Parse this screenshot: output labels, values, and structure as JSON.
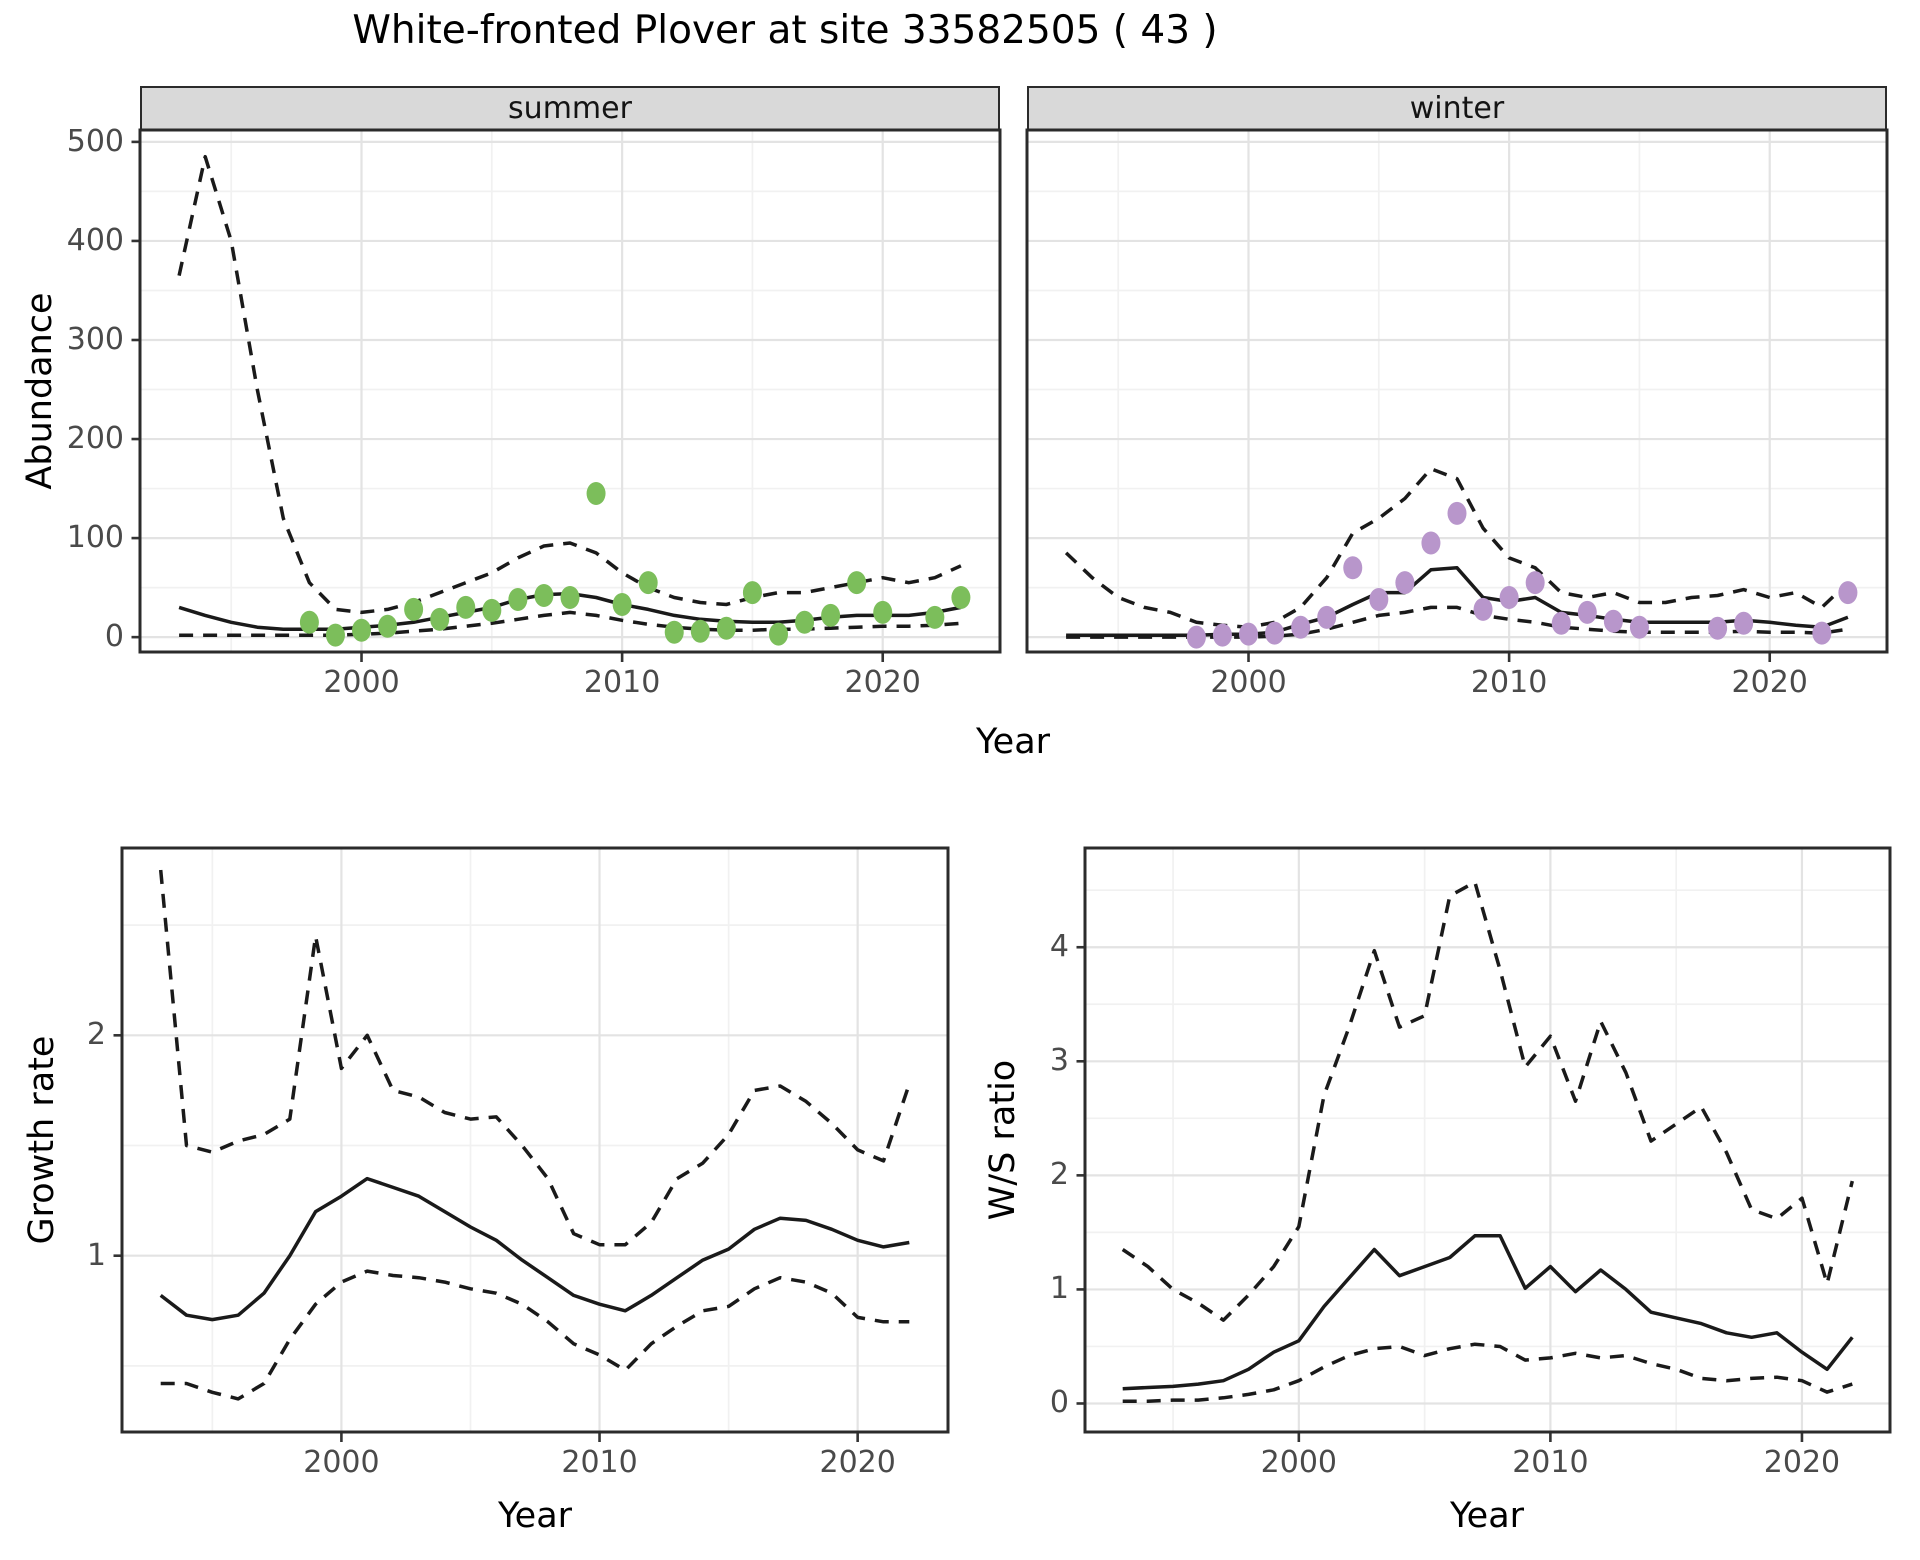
{
  "labels": {
    "title": "White-fronted Plover at site 33582505 ( 43 )",
    "facet_summer": "summer",
    "facet_winter": "winter",
    "abundance": "Abundance",
    "growth_rate": "Growth rate",
    "ws_ratio": "W/S ratio",
    "year": "Year"
  },
  "colors": {
    "summer_point": "#7CBE5B",
    "winter_point": "#B896CB",
    "line": "#1a1a1a",
    "strip_bg": "#d9d9d9",
    "panel_border": "#2b2b2b",
    "grid_major": "#e3e3e3",
    "grid_minor": "#f1f1f1",
    "axis_text": "#4a4a4a",
    "tick_mark": "#333333"
  },
  "chart_data": [
    {
      "id": "abundance_summer",
      "type": "line",
      "facet_label": "summer",
      "xlabel": "Year",
      "ylabel": "Abundance",
      "xlim": [
        1991.5,
        2024.5
      ],
      "ylim": [
        -15,
        512
      ],
      "xticks": [
        2000,
        2010,
        2020
      ],
      "xminor": [
        1995,
        2005,
        2015
      ],
      "yticks": [
        0,
        100,
        200,
        300,
        400,
        500
      ],
      "yminor": [
        50,
        150,
        250,
        350,
        450
      ],
      "grid": true,
      "legend": "none",
      "series": [
        {
          "name": "upper_ci",
          "style": "dashed",
          "x": [
            1993,
            1994,
            1995,
            1996,
            1997,
            1998,
            1999,
            2000,
            2001,
            2002,
            2003,
            2004,
            2005,
            2006,
            2007,
            2008,
            2009,
            2010,
            2011,
            2012,
            2013,
            2014,
            2015,
            2016,
            2017,
            2018,
            2019,
            2020,
            2021,
            2022,
            2023
          ],
          "y": [
            365,
            485,
            400,
            250,
            120,
            55,
            28,
            25,
            28,
            35,
            45,
            55,
            65,
            80,
            92,
            95,
            85,
            65,
            50,
            40,
            35,
            33,
            40,
            45,
            45,
            50,
            55,
            60,
            55,
            60,
            72
          ]
        },
        {
          "name": "median_fit",
          "style": "solid",
          "x": [
            1993,
            1994,
            1995,
            1996,
            1997,
            1998,
            1999,
            2000,
            2001,
            2002,
            2003,
            2004,
            2005,
            2006,
            2007,
            2008,
            2009,
            2010,
            2011,
            2012,
            2013,
            2014,
            2015,
            2016,
            2017,
            2018,
            2019,
            2020,
            2021,
            2022,
            2023
          ],
          "y": [
            30,
            22,
            15,
            10,
            8,
            8,
            8,
            10,
            12,
            15,
            20,
            25,
            30,
            38,
            43,
            44,
            40,
            33,
            28,
            22,
            18,
            16,
            15,
            15,
            17,
            20,
            22,
            22,
            22,
            25,
            30
          ]
        },
        {
          "name": "lower_ci",
          "style": "dashed",
          "x": [
            1993,
            1994,
            1995,
            1996,
            1997,
            1998,
            1999,
            2000,
            2001,
            2002,
            2003,
            2004,
            2005,
            2006,
            2007,
            2008,
            2009,
            2010,
            2011,
            2012,
            2013,
            2014,
            2015,
            2016,
            2017,
            2018,
            2019,
            2020,
            2021,
            2022,
            2023
          ],
          "y": [
            2,
            2,
            2,
            2,
            2,
            2,
            2,
            3,
            4,
            6,
            8,
            11,
            14,
            18,
            22,
            25,
            22,
            17,
            13,
            10,
            8,
            7,
            7,
            8,
            8,
            9,
            10,
            11,
            11,
            12,
            14
          ]
        },
        {
          "name": "observed_counts",
          "style": "points",
          "color": "#7CBE5B",
          "x": [
            1998,
            1999,
            2000,
            2001,
            2002,
            2003,
            2004,
            2005,
            2006,
            2007,
            2008,
            2009,
            2010,
            2011,
            2012,
            2013,
            2014,
            2015,
            2016,
            2017,
            2018,
            2019,
            2020,
            2022,
            2023
          ],
          "y": [
            15,
            2,
            7,
            11,
            28,
            18,
            30,
            27,
            38,
            42,
            40,
            145,
            33,
            55,
            5,
            6,
            9,
            45,
            3,
            15,
            22,
            55,
            25,
            20,
            40
          ]
        }
      ]
    },
    {
      "id": "abundance_winter",
      "type": "line",
      "facet_label": "winter",
      "xlabel": "Year",
      "ylabel": "Abundance",
      "xlim": [
        1991.5,
        2024.5
      ],
      "ylim": [
        -15,
        512
      ],
      "xticks": [
        2000,
        2010,
        2020
      ],
      "xminor": [
        1995,
        2005,
        2015
      ],
      "yticks": [
        0,
        100,
        200,
        300,
        400,
        500
      ],
      "yminor": [
        50,
        150,
        250,
        350,
        450
      ],
      "grid": true,
      "legend": "none",
      "series": [
        {
          "name": "upper_ci",
          "style": "dashed",
          "x": [
            1993,
            1994,
            1995,
            1996,
            1997,
            1998,
            1999,
            2000,
            2001,
            2002,
            2003,
            2004,
            2005,
            2006,
            2007,
            2008,
            2009,
            2010,
            2011,
            2012,
            2013,
            2014,
            2015,
            2016,
            2017,
            2018,
            2019,
            2020,
            2021,
            2022,
            2023
          ],
          "y": [
            85,
            60,
            40,
            30,
            25,
            15,
            12,
            10,
            15,
            30,
            60,
            105,
            120,
            140,
            170,
            160,
            110,
            80,
            70,
            45,
            40,
            45,
            35,
            35,
            40,
            42,
            48,
            40,
            45,
            30,
            55
          ]
        },
        {
          "name": "median_fit",
          "style": "solid",
          "x": [
            1993,
            1994,
            1995,
            1996,
            1997,
            1998,
            1999,
            2000,
            2001,
            2002,
            2003,
            2004,
            2005,
            2006,
            2007,
            2008,
            2009,
            2010,
            2011,
            2012,
            2013,
            2014,
            2015,
            2016,
            2017,
            2018,
            2019,
            2020,
            2021,
            2022,
            2023
          ],
          "y": [
            2,
            2,
            2,
            2,
            2,
            2,
            3,
            3,
            5,
            13,
            20,
            33,
            45,
            45,
            68,
            70,
            40,
            36,
            40,
            25,
            22,
            18,
            15,
            15,
            15,
            15,
            17,
            15,
            12,
            10,
            20
          ]
        },
        {
          "name": "lower_ci",
          "style": "dashed",
          "x": [
            1993,
            1994,
            1995,
            1996,
            1997,
            1998,
            1999,
            2000,
            2001,
            2002,
            2003,
            2004,
            2005,
            2006,
            2007,
            2008,
            2009,
            2010,
            2011,
            2012,
            2013,
            2014,
            2015,
            2016,
            2017,
            2018,
            2019,
            2020,
            2021,
            2022,
            2023
          ],
          "y": [
            0,
            0,
            0,
            0,
            0,
            0,
            0,
            0,
            1,
            3,
            8,
            15,
            22,
            25,
            30,
            30,
            22,
            18,
            15,
            10,
            8,
            6,
            5,
            5,
            5,
            5,
            6,
            5,
            5,
            4,
            8
          ]
        },
        {
          "name": "observed_counts",
          "style": "points",
          "color": "#B896CB",
          "x": [
            1998,
            1999,
            2000,
            2001,
            2002,
            2003,
            2004,
            2005,
            2006,
            2007,
            2008,
            2009,
            2010,
            2011,
            2012,
            2013,
            2014,
            2015,
            2018,
            2019,
            2022,
            2023
          ],
          "y": [
            0,
            2,
            3,
            4,
            10,
            20,
            70,
            38,
            55,
            95,
            125,
            28,
            40,
            55,
            14,
            25,
            16,
            10,
            9,
            14,
            4,
            45
          ]
        }
      ]
    },
    {
      "id": "growth_rate",
      "type": "line",
      "facet_label": "",
      "xlabel": "Year",
      "ylabel": "Growth rate",
      "xlim": [
        1991.5,
        2023.5
      ],
      "ylim": [
        0.2,
        2.85
      ],
      "xticks": [
        2000,
        2010,
        2020
      ],
      "xminor": [
        1995,
        2005,
        2015
      ],
      "yticks": [
        1,
        2
      ],
      "yminor": [
        0.5,
        1.5,
        2.5
      ],
      "grid": true,
      "legend": "none",
      "series": [
        {
          "name": "upper_ci",
          "style": "dashed",
          "x": [
            1993,
            1994,
            1995,
            1996,
            1997,
            1998,
            1999,
            2000,
            2001,
            2002,
            2003,
            2004,
            2005,
            2006,
            2007,
            2008,
            2009,
            2010,
            2011,
            2012,
            2013,
            2014,
            2015,
            2016,
            2017,
            2018,
            2019,
            2020,
            2021,
            2022
          ],
          "y": [
            2.75,
            1.5,
            1.47,
            1.52,
            1.55,
            1.62,
            2.45,
            1.85,
            2.0,
            1.75,
            1.72,
            1.65,
            1.62,
            1.63,
            1.5,
            1.35,
            1.1,
            1.05,
            1.05,
            1.15,
            1.35,
            1.42,
            1.55,
            1.75,
            1.77,
            1.7,
            1.6,
            1.48,
            1.43,
            1.78
          ]
        },
        {
          "name": "median_fit",
          "style": "solid",
          "x": [
            1993,
            1994,
            1995,
            1996,
            1997,
            1998,
            1999,
            2000,
            2001,
            2002,
            2003,
            2004,
            2005,
            2006,
            2007,
            2008,
            2009,
            2010,
            2011,
            2012,
            2013,
            2014,
            2015,
            2016,
            2017,
            2018,
            2019,
            2020,
            2021,
            2022
          ],
          "y": [
            0.82,
            0.73,
            0.71,
            0.73,
            0.83,
            1.0,
            1.2,
            1.27,
            1.35,
            1.31,
            1.27,
            1.2,
            1.13,
            1.07,
            0.98,
            0.9,
            0.82,
            0.78,
            0.75,
            0.82,
            0.9,
            0.98,
            1.03,
            1.12,
            1.17,
            1.16,
            1.12,
            1.07,
            1.04,
            1.06
          ]
        },
        {
          "name": "lower_ci",
          "style": "dashed",
          "x": [
            1993,
            1994,
            1995,
            1996,
            1997,
            1998,
            1999,
            2000,
            2001,
            2002,
            2003,
            2004,
            2005,
            2006,
            2007,
            2008,
            2009,
            2010,
            2011,
            2012,
            2013,
            2014,
            2015,
            2016,
            2017,
            2018,
            2019,
            2020,
            2021,
            2022
          ],
          "y": [
            0.42,
            0.42,
            0.38,
            0.35,
            0.42,
            0.62,
            0.78,
            0.88,
            0.93,
            0.91,
            0.9,
            0.88,
            0.85,
            0.83,
            0.78,
            0.7,
            0.6,
            0.55,
            0.48,
            0.6,
            0.68,
            0.75,
            0.77,
            0.85,
            0.9,
            0.88,
            0.83,
            0.72,
            0.7,
            0.7
          ]
        }
      ]
    },
    {
      "id": "ws_ratio",
      "type": "line",
      "facet_label": "",
      "xlabel": "Year",
      "ylabel": "W/S ratio",
      "xlim": [
        1991.5,
        2023.5
      ],
      "ylim": [
        -0.25,
        4.87
      ],
      "xticks": [
        2000,
        2010,
        2020
      ],
      "xminor": [
        1995,
        2005,
        2015
      ],
      "yticks": [
        0,
        1,
        2,
        3,
        4
      ],
      "yminor": [
        0.5,
        1.5,
        2.5,
        3.5,
        4.5
      ],
      "grid": true,
      "legend": "none",
      "series": [
        {
          "name": "upper_ci",
          "style": "dashed",
          "x": [
            1993,
            1994,
            1995,
            1996,
            1997,
            1998,
            1999,
            2000,
            2001,
            2002,
            2003,
            2004,
            2005,
            2006,
            2007,
            2008,
            2009,
            2010,
            2011,
            2012,
            2013,
            2014,
            2015,
            2016,
            2017,
            2018,
            2019,
            2020,
            2021,
            2022
          ],
          "y": [
            1.35,
            1.2,
            1.0,
            0.88,
            0.73,
            0.95,
            1.2,
            1.55,
            2.7,
            3.3,
            3.97,
            3.3,
            3.4,
            4.45,
            4.57,
            3.8,
            2.95,
            3.22,
            2.65,
            3.35,
            2.9,
            2.3,
            2.45,
            2.6,
            2.2,
            1.7,
            1.62,
            1.8,
            1.05,
            1.95
          ]
        },
        {
          "name": "median_fit",
          "style": "solid",
          "x": [
            1993,
            1994,
            1995,
            1996,
            1997,
            1998,
            1999,
            2000,
            2001,
            2002,
            2003,
            2004,
            2005,
            2006,
            2007,
            2008,
            2009,
            2010,
            2011,
            2012,
            2013,
            2014,
            2015,
            2016,
            2017,
            2018,
            2019,
            2020,
            2021,
            2022
          ],
          "y": [
            0.13,
            0.14,
            0.15,
            0.17,
            0.2,
            0.3,
            0.45,
            0.55,
            0.85,
            1.1,
            1.35,
            1.12,
            1.2,
            1.28,
            1.47,
            1.47,
            1.01,
            1.2,
            0.98,
            1.17,
            1.0,
            0.8,
            0.75,
            0.7,
            0.62,
            0.58,
            0.62,
            0.45,
            0.3,
            0.58
          ]
        },
        {
          "name": "lower_ci",
          "style": "dashed",
          "x": [
            1993,
            1994,
            1995,
            1996,
            1997,
            1998,
            1999,
            2000,
            2001,
            2002,
            2003,
            2004,
            2005,
            2006,
            2007,
            2008,
            2009,
            2010,
            2011,
            2012,
            2013,
            2014,
            2015,
            2016,
            2017,
            2018,
            2019,
            2020,
            2021,
            2022
          ],
          "y": [
            0.02,
            0.02,
            0.03,
            0.03,
            0.05,
            0.08,
            0.12,
            0.2,
            0.32,
            0.42,
            0.48,
            0.5,
            0.42,
            0.48,
            0.52,
            0.5,
            0.38,
            0.4,
            0.44,
            0.4,
            0.42,
            0.35,
            0.3,
            0.22,
            0.2,
            0.22,
            0.23,
            0.2,
            0.1,
            0.17
          ]
        }
      ]
    }
  ]
}
